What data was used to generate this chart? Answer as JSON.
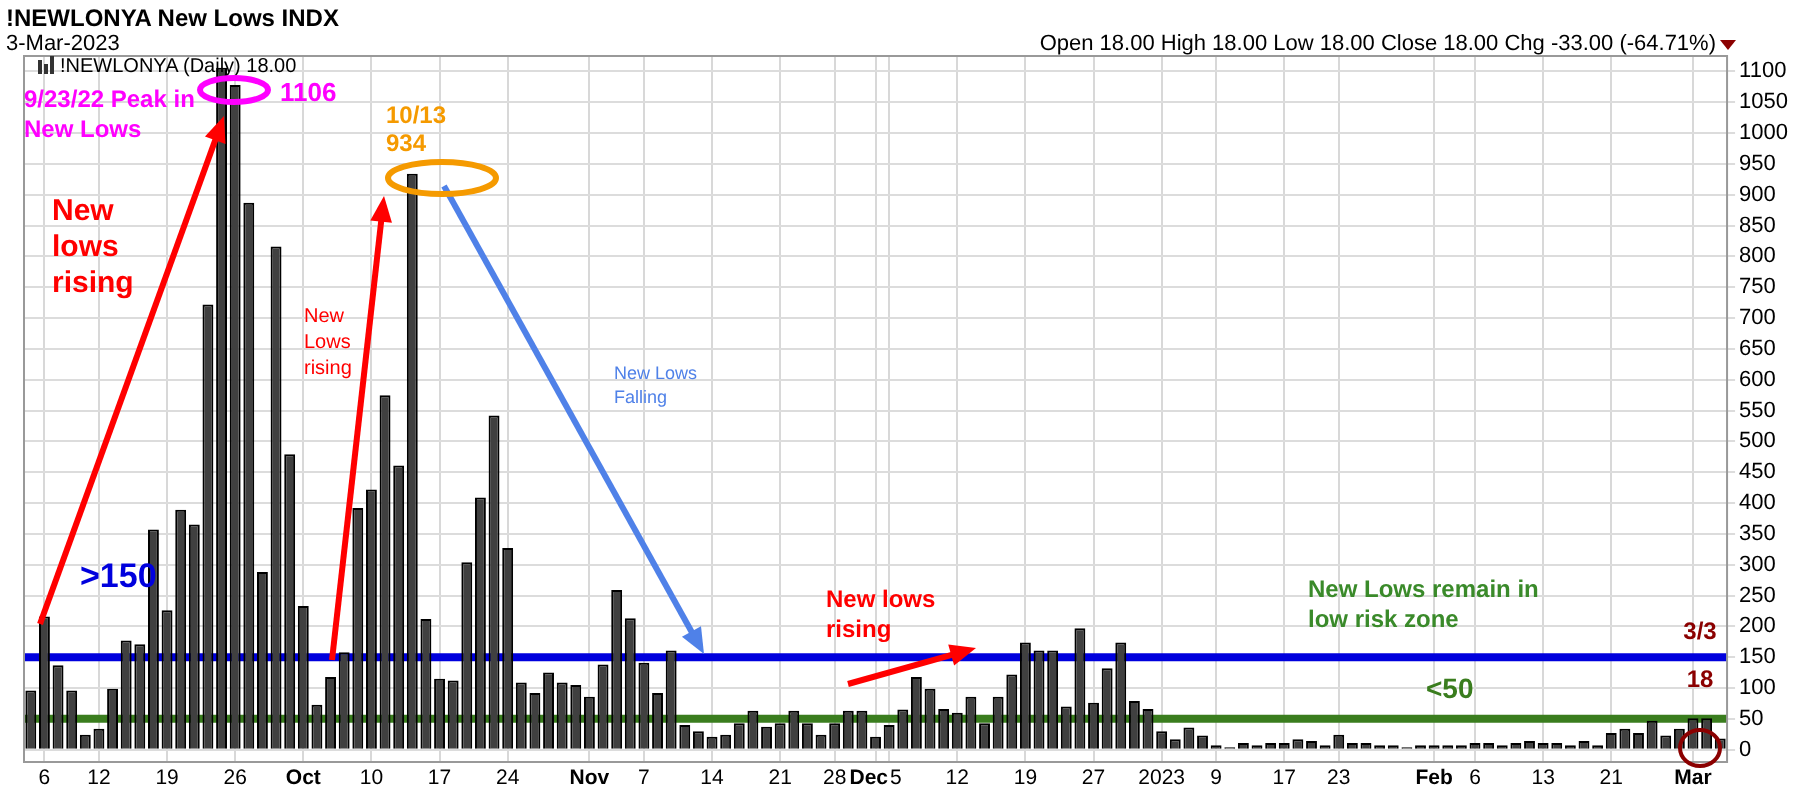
{
  "chart_data": {
    "type": "bar",
    "title": "!NEWLONYA New Lows INDX",
    "subtitle": "3-Mar-2023",
    "annotations": [
      "!NEWLONYA (Daily) 18.00",
      "9/23/22 Peak in New Lows",
      "1106",
      "10/13",
      "934",
      "New lows rising",
      "New Lows rising",
      "New Lows Falling",
      "New lows rising",
      "New Lows remain in low risk zone",
      "3/3",
      "18",
      "Open 18.00 High 18.00 Low 18.00 Close 18.00 Chg -33.00 (-64.71%)"
    ],
    "categories": [
      null,
      "6",
      null,
      null,
      null,
      "12",
      null,
      null,
      null,
      null,
      "19",
      null,
      null,
      null,
      null,
      "26",
      null,
      null,
      null,
      null,
      "Oct",
      null,
      null,
      null,
      null,
      "10",
      null,
      null,
      null,
      null,
      "17",
      null,
      null,
      null,
      null,
      "24",
      null,
      null,
      null,
      null,
      null,
      "Nov",
      null,
      null,
      null,
      "7",
      null,
      null,
      null,
      null,
      "14",
      null,
      null,
      null,
      null,
      "21",
      null,
      null,
      null,
      "28",
      null,
      null,
      "Dec",
      "5",
      null,
      null,
      null,
      null,
      "12",
      null,
      null,
      null,
      null,
      "19",
      null,
      null,
      null,
      null,
      "27",
      null,
      null,
      null,
      null,
      "2023",
      null,
      null,
      null,
      "9",
      null,
      null,
      null,
      null,
      "17",
      null,
      null,
      null,
      "23",
      null,
      null,
      null,
      null,
      null,
      null,
      "Feb",
      null,
      null,
      "6",
      null,
      null,
      null,
      null,
      "13",
      null,
      null,
      null,
      null,
      "21",
      null,
      null,
      null,
      null,
      null,
      "Mar",
      null,
      null
    ],
    "values": [
      96,
      216,
      137,
      96,
      24,
      34,
      99,
      177,
      171,
      357,
      226,
      389,
      365,
      722,
      1106,
      1078,
      887,
      288,
      816,
      479,
      233,
      73,
      118,
      158,
      392,
      422,
      575,
      461,
      934,
      212,
      115,
      112,
      304,
      409,
      542,
      327,
      109,
      92,
      125,
      109,
      105,
      86,
      138,
      259,
      213,
      141,
      92,
      161,
      40,
      30,
      21,
      24,
      43,
      63,
      37,
      43,
      63,
      43,
      24,
      43,
      63,
      63,
      21,
      40,
      65,
      118,
      99,
      66,
      60,
      86,
      43,
      86,
      122,
      174,
      161,
      161,
      70,
      197,
      76,
      132,
      174,
      79,
      66,
      30,
      17,
      36,
      23,
      7,
      4,
      11,
      7,
      11,
      11,
      17,
      14,
      7,
      24,
      11,
      11,
      7,
      7,
      4,
      7,
      7,
      7,
      7,
      11,
      11,
      7,
      11,
      14,
      11,
      11,
      7,
      14,
      7,
      27,
      34,
      27,
      47,
      23,
      34,
      51,
      51,
      18
    ],
    "color": "#404040",
    "ylim": [
      -20,
      1125
    ],
    "yticks": [
      0,
      50,
      100,
      150,
      200,
      250,
      300,
      350,
      400,
      450,
      500,
      550,
      600,
      650,
      700,
      750,
      800,
      850,
      900,
      950,
      1000,
      1050,
      1100
    ],
    "grid": true,
    "ref_lines": [
      {
        "axis": "y",
        "value": 150,
        "label": ">150",
        "color": "#0000dd"
      },
      {
        "axis": "y",
        "value": 50,
        "label": "<50",
        "color": "#3a7d1e"
      }
    ]
  }
}
